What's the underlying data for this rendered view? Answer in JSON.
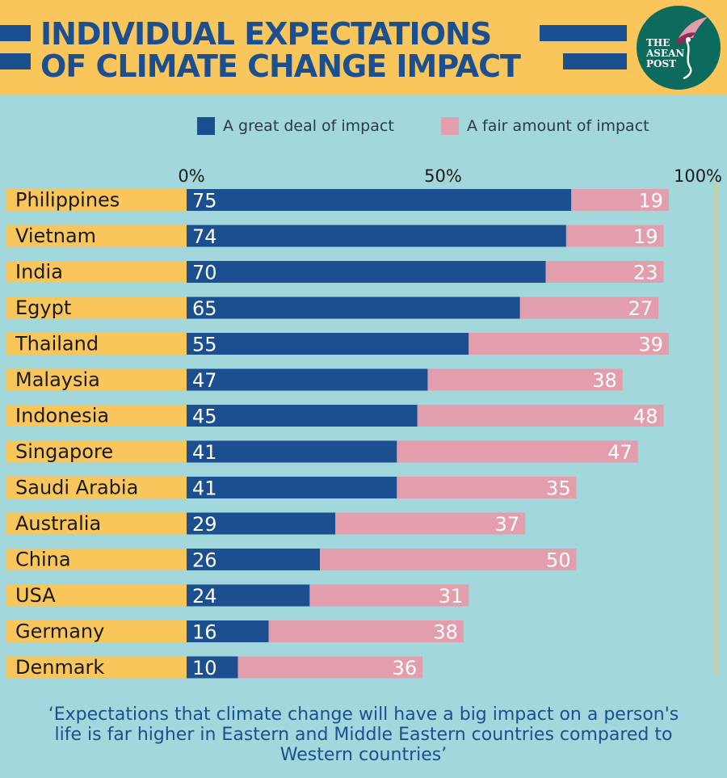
{
  "title_lines": [
    "INDIVIDUAL EXPECTATIONS",
    "OF CLIMATE CHANGE IMPACT"
  ],
  "logo": {
    "lines": [
      "THE",
      "ASEAN",
      "POST"
    ],
    "icon": "bird-icon"
  },
  "colors": {
    "great_deal": "#1b4f8f",
    "fair_amount": "#e39eae",
    "background": "#a2d7dc",
    "header": "#f9c65c",
    "label_band": "#f9c65c"
  },
  "footnote": "‘Expectations that climate change will have a big impact on a person's life is far higher in Eastern and Middle Eastern countries compared to Western countries’",
  "chart_data": {
    "type": "bar",
    "orientation": "horizontal",
    "stacked": true,
    "x_ticks": [
      "0%",
      "50%",
      "100%"
    ],
    "xlim": [
      0,
      100
    ],
    "legend_position": "top-right",
    "categories": [
      "Philippines",
      "Vietnam",
      "India",
      "Egypt",
      "Thailand",
      "Malaysia",
      "Indonesia",
      "Singapore",
      "Saudi Arabia",
      "Australia",
      "China",
      "USA",
      "Germany",
      "Denmark"
    ],
    "series": [
      {
        "name": "A great deal of impact",
        "values": [
          75,
          74,
          70,
          65,
          55,
          47,
          45,
          41,
          41,
          29,
          26,
          24,
          16,
          10
        ]
      },
      {
        "name": "A fair amount of impact",
        "values": [
          19,
          19,
          23,
          27,
          39,
          38,
          48,
          47,
          35,
          37,
          50,
          31,
          38,
          36
        ]
      }
    ]
  }
}
